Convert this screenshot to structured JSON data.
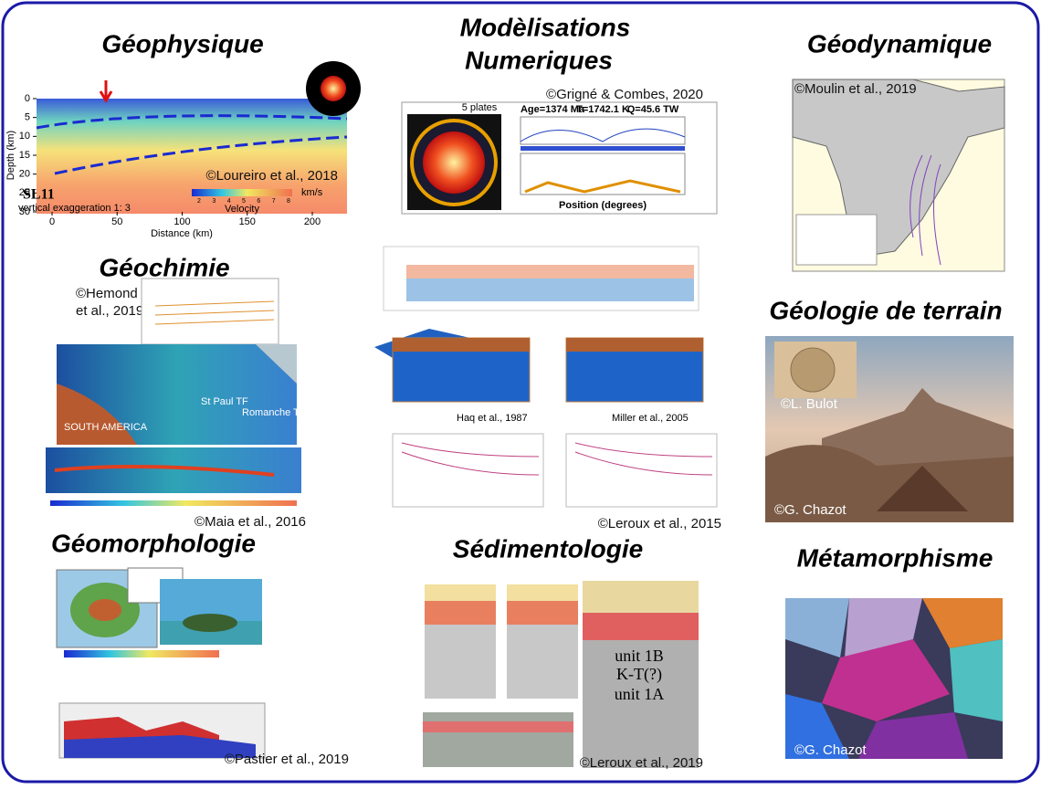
{
  "panels": [
    {
      "title": "Géophysique",
      "credit": "©Loureiro et al., 2018",
      "figure": {
        "label": "SL11",
        "note": "vertical exaggeration 1:  3",
        "x_label": "Distance (km)",
        "y_label": "Depth (km)",
        "xticks": [
          0,
          50,
          100,
          150,
          200
        ],
        "yticks": [
          0,
          5,
          10,
          15,
          20,
          25,
          30
        ],
        "colorbar_label": "Velocity",
        "colorbar_unit": "km/s",
        "colorbar_ticks": [
          2,
          3,
          4,
          5,
          6,
          7,
          8
        ]
      }
    },
    {
      "title": [
        "Modèlisations",
        "Numeriques"
      ],
      "credit": "©Grigné & Combes, 2020",
      "figure": {
        "label": "5 plates",
        "age": "Age=1374 Ma",
        "temperature": "T=1742.1 K",
        "heat_flow": "Q=45.6 TW",
        "x_label": "Position (degrees)"
      }
    },
    {
      "title": "Géodynamique",
      "credit": "©Moulin et al., 2019"
    },
    {
      "title": "Géochimie",
      "credit": [
        "©Hemond",
        "et al., 2019"
      ],
      "credit2": "©Maia et al., 2016",
      "figure": {
        "labels": [
          "SOUTH AMERICA",
          "St Paul TF",
          "Romanche TF"
        ]
      }
    },
    {
      "credit": "©Leroux et al., 2015",
      "figure": {
        "labels": [
          "Haq et al., 1987",
          "Miller et al., 2005"
        ]
      }
    },
    {
      "title": "Géologie de terrain",
      "credit": "©G. Chazot",
      "inset_credit": "©L. Bulot"
    },
    {
      "title": "Géomorphologie",
      "credit": "©Pastier et al., 2019"
    },
    {
      "title": "Sédimentologie",
      "credit": "©Leroux et al., 2019",
      "figure": {
        "labels": [
          "unit 1B",
          "K-T(?)",
          "unit 1A"
        ]
      }
    },
    {
      "title": "Métamorphisme",
      "credit": "©G. Chazot"
    }
  ]
}
